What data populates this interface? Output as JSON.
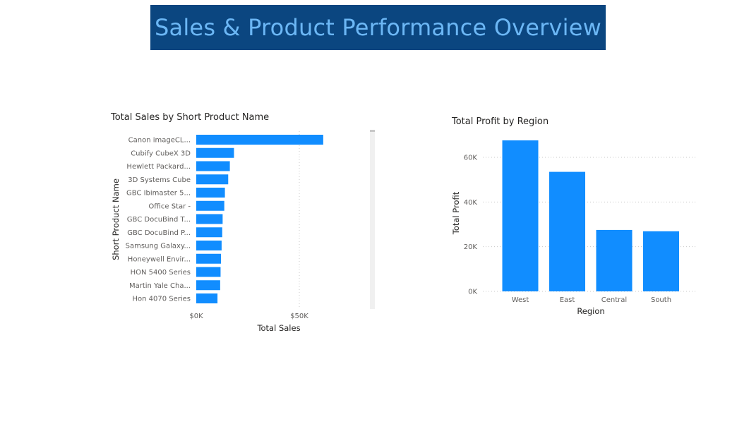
{
  "page": {
    "title": "Sales & Product Performance Overview"
  },
  "colors": {
    "banner": "#0b4680",
    "banner_text": "#6cb7f5",
    "bar": "#118dff"
  },
  "chart_data": [
    {
      "type": "bar",
      "orientation": "horizontal",
      "title": "Total Sales by Short Product Name",
      "xlabel": "Total Sales",
      "ylabel": "Short Product Name",
      "xlim": [
        0,
        85000
      ],
      "xticks": [
        {
          "value": 0,
          "label": "$0K"
        },
        {
          "value": 50000,
          "label": "$50K"
        }
      ],
      "grid": true,
      "categories": [
        "Canon imageCL...",
        "Cubify CubeX 3D",
        "Hewlett Packard...",
        "3D Systems Cube",
        "GBC Ibimaster 5...",
        "Office Star -",
        "GBC DocuBind T...",
        "GBC DocuBind P...",
        "Samsung Galaxy...",
        "Honeywell Envir...",
        "HON 5400 Series",
        "Martin Yale Cha...",
        "Hon 4070 Series"
      ],
      "values": [
        61600,
        18300,
        16300,
        15500,
        13900,
        13600,
        12800,
        12600,
        12300,
        12000,
        11800,
        11600,
        10300
      ]
    },
    {
      "type": "bar",
      "title": "Total Profit by Region",
      "xlabel": "Region",
      "ylabel": "Total Profit",
      "ylim": [
        0,
        72000
      ],
      "yticks": [
        {
          "value": 0,
          "label": "0K"
        },
        {
          "value": 20000,
          "label": "20K"
        },
        {
          "value": 40000,
          "label": "40K"
        },
        {
          "value": 60000,
          "label": "60K"
        }
      ],
      "grid": true,
      "categories": [
        "West",
        "East",
        "Central",
        "South"
      ],
      "values": [
        67600,
        53500,
        27500,
        26900
      ]
    }
  ]
}
